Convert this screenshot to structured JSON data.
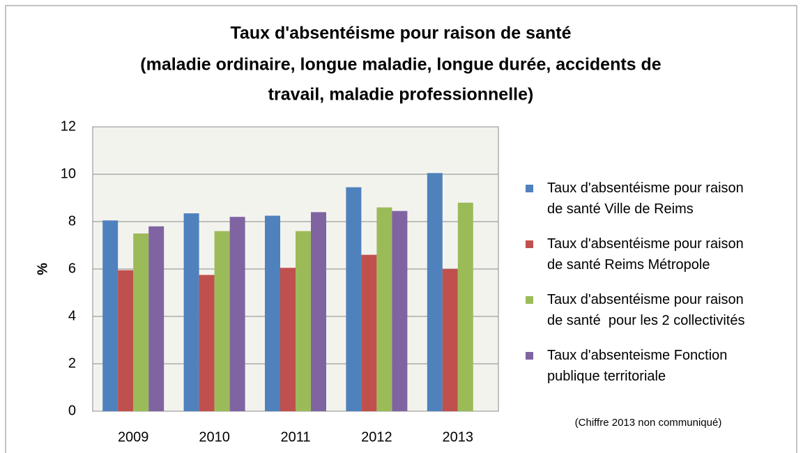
{
  "chart_data": {
    "type": "bar",
    "title": [
      "Taux d'absentéisme pour raison de santé",
      "(maladie ordinaire, longue maladie, longue durée, accidents de",
      "travail, maladie professionnelle)"
    ],
    "y_label": "%",
    "categories": [
      "2009",
      "2010",
      "2011",
      "2012",
      "2013"
    ],
    "series": [
      {
        "name": "Taux d'absentéisme pour raison de santé Ville de Reims",
        "color": "#4f81bd",
        "values": [
          8.05,
          8.35,
          8.25,
          9.45,
          10.05
        ]
      },
      {
        "name": "Taux d'absentéisme pour raison de santé Reims Métropole",
        "color": "#c0504d",
        "values": [
          5.95,
          5.75,
          6.05,
          6.6,
          6.0
        ]
      },
      {
        "name": "Taux d'absentéisme pour raison de santé  pour les 2 collectivités",
        "color": "#9bbb59",
        "values": [
          7.5,
          7.6,
          7.6,
          8.6,
          8.8
        ]
      },
      {
        "name": "Taux d'absenteisme Fonction publique territoriale",
        "color": "#8064a2",
        "values": [
          7.8,
          8.2,
          8.4,
          8.45,
          null
        ]
      }
    ],
    "annotation": "(Chiffre 2013 non communiqué)",
    "ylim": [
      0,
      12
    ],
    "yticks": [
      0,
      2,
      4,
      6,
      8,
      10,
      12
    ],
    "grid": true,
    "legend": "right"
  }
}
